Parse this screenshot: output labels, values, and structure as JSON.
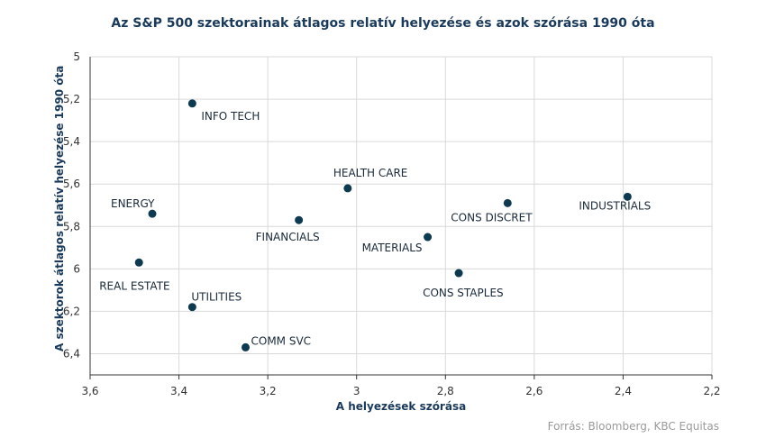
{
  "chart_data": {
    "type": "scatter",
    "title": "Az S&P 500 szektorainak átlagos relatív helyezése és azok szórása 1990 óta",
    "xlabel": "A helyezések szórása",
    "ylabel": "A szektorok átlagos relatív helyezése 1990 óta",
    "xlim": [
      3.6,
      2.2
    ],
    "ylim": [
      5,
      6.5
    ],
    "x_reversed": true,
    "y_reversed": true,
    "x_ticks": [
      "3,6",
      "3,4",
      "3,2",
      "3",
      "2,8",
      "2,6",
      "2,4",
      "2,2"
    ],
    "y_ticks": [
      "5",
      "5,2",
      "5,4",
      "5,6",
      "5,8",
      "6",
      "6,2",
      "6,4"
    ],
    "grid": true,
    "marker_color": "#0d3a50",
    "points": [
      {
        "label": "INFO TECH",
        "x": 3.37,
        "y": 5.22
      },
      {
        "label": "HEALTH CARE",
        "x": 3.02,
        "y": 5.62
      },
      {
        "label": "ENERGY",
        "x": 3.46,
        "y": 5.74
      },
      {
        "label": "CONS DISCRET",
        "x": 2.66,
        "y": 5.69
      },
      {
        "label": "INDUSTRIALS",
        "x": 2.39,
        "y": 5.66
      },
      {
        "label": "FINANCIALS",
        "x": 3.13,
        "y": 5.77
      },
      {
        "label": "MATERIALS",
        "x": 2.84,
        "y": 5.85
      },
      {
        "label": "REAL ESTATE",
        "x": 3.49,
        "y": 5.97
      },
      {
        "label": "CONS STAPLES",
        "x": 2.77,
        "y": 6.02
      },
      {
        "label": "UTILITIES",
        "x": 3.37,
        "y": 6.18
      },
      {
        "label": "COMM SVC",
        "x": 3.25,
        "y": 6.37
      }
    ]
  },
  "footer": {
    "source": "Forrás: Bloomberg,  KBC Equitas"
  }
}
